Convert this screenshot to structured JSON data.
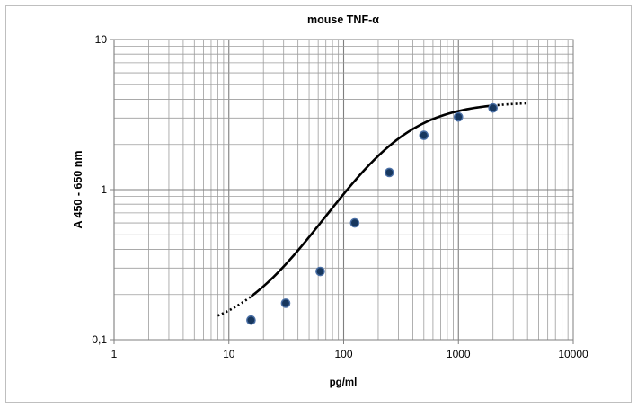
{
  "chart_data": {
    "type": "scatter",
    "title": "mouse TNF-α",
    "xlabel": "pg/ml",
    "ylabel": "A 450 - 650 nm",
    "x_scale": "log",
    "y_scale": "log",
    "xlim": [
      1,
      10000
    ],
    "ylim": [
      0.1,
      10
    ],
    "x_ticks": [
      "1",
      "10",
      "100",
      "1000",
      "10000"
    ],
    "y_ticks": [
      "10",
      "1",
      "0,1"
    ],
    "grid": true,
    "legend": "none",
    "series": [
      {
        "x": [
          15.6,
          31.25,
          62.5,
          125,
          250,
          500,
          1000,
          2000
        ],
        "y": [
          0.135,
          0.175,
          0.285,
          0.6,
          1.3,
          2.3,
          3.05,
          3.5
        ]
      }
    ],
    "fit_curve": {
      "type": "4PL",
      "bottom": 0.11,
      "top": 3.85,
      "ec50": 255,
      "hill": 1.35,
      "solid_range": [
        15.6,
        2000
      ],
      "dotted_range": [
        [
          8,
          15.6
        ],
        [
          2000,
          4000
        ]
      ]
    },
    "colors": {
      "marker_fill": "#17375e",
      "marker_edge": "#4a6fa5",
      "curve": "#000000",
      "grid": "#9d9d9d"
    }
  }
}
